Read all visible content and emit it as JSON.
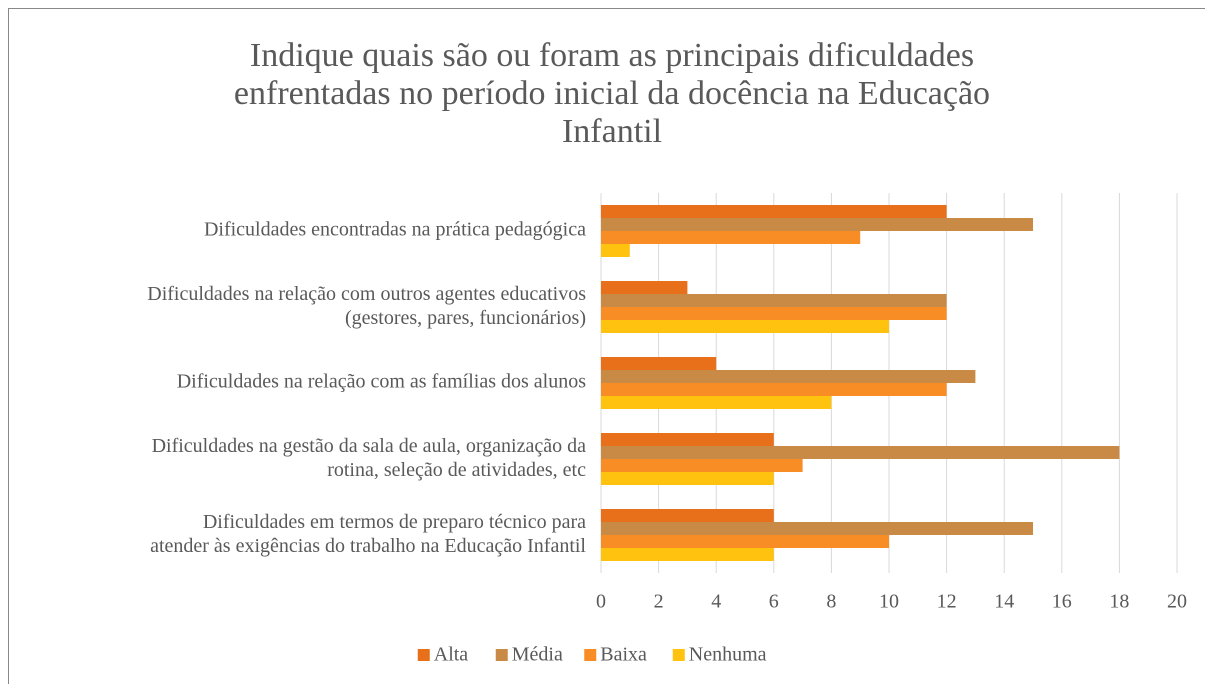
{
  "chart_data": {
    "type": "bar",
    "orientation": "horizontal",
    "title": "Indique quais são ou foram as principais dificuldades\nenfrentadas no período inicial da docência na Educação\nInfantil",
    "categories": [
      "Dificuldades encontradas na prática pedagógica",
      "Dificuldades na relação com outros agentes educativos\n(gestores, pares, funcionários)",
      "Dificuldades na relação com as famílias dos alunos",
      "Dificuldades na gestão da sala de aula, organização da\nrotina, seleção de atividades, etc",
      "Dificuldades em termos de preparo técnico para\natender às exigências do trabalho na Educação Infantil"
    ],
    "series": [
      {
        "name": "Alta",
        "color": "#e8701a",
        "values": [
          12,
          3,
          4,
          6,
          6
        ]
      },
      {
        "name": "Média",
        "color": "#c98a45",
        "values": [
          15,
          12,
          13,
          18,
          15
        ]
      },
      {
        "name": "Baixa",
        "color": "#f78d24",
        "values": [
          9,
          12,
          12,
          7,
          10
        ]
      },
      {
        "name": "Nenhuma",
        "color": "#ffc20e",
        "values": [
          1,
          10,
          8,
          6,
          6
        ]
      }
    ],
    "xlim": [
      0,
      20
    ],
    "xticks": [
      0,
      2,
      4,
      6,
      8,
      10,
      12,
      14,
      16,
      18,
      20
    ],
    "grid": true,
    "legend": "bottom"
  }
}
